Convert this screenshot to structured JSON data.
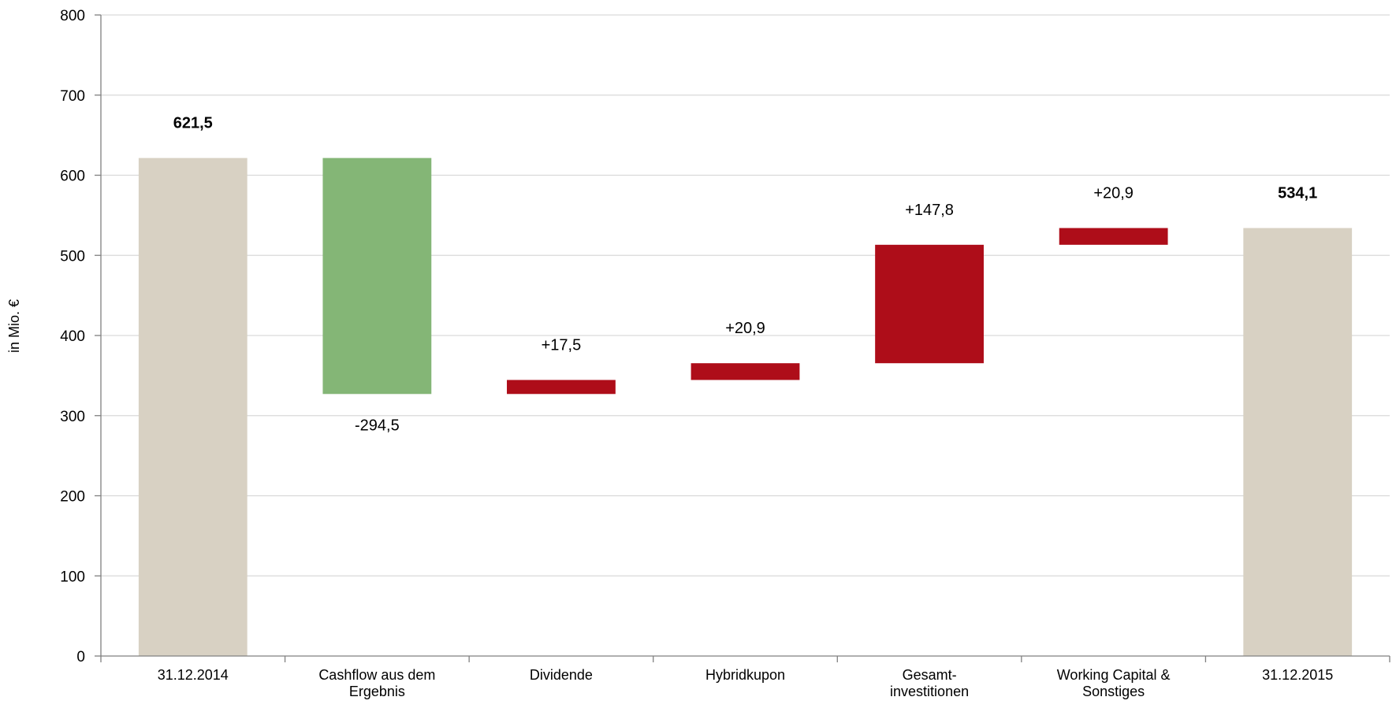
{
  "chart_data": {
    "type": "bar",
    "subtype": "waterfall",
    "ylabel": "in Mio. €",
    "ylim": [
      0,
      800
    ],
    "yticks": [
      0,
      100,
      200,
      300,
      400,
      500,
      600,
      700,
      800
    ],
    "ytick_labels": [
      "0",
      "100",
      "200",
      "300",
      "400",
      "500",
      "600",
      "700",
      "800"
    ],
    "grid": true,
    "legend": "none",
    "colors": {
      "total": "#D8D1C3",
      "increase": "#84B676",
      "decrease": "#AE0D19",
      "grid": "#D9D9D9",
      "axis": "#808080"
    },
    "bars": [
      {
        "category": [
          "31.12.2014"
        ],
        "kind": "total",
        "start": 0,
        "end": 621.5,
        "label": "621,5",
        "label_bold": true,
        "label_position": "above"
      },
      {
        "category": [
          "Cashflow aus dem",
          "Ergebnis"
        ],
        "kind": "increase",
        "start": 621.5,
        "end": 327.0,
        "label": "-294,5",
        "label_bold": false,
        "label_position": "below"
      },
      {
        "category": [
          "Dividende"
        ],
        "kind": "decrease",
        "start": 327.0,
        "end": 344.5,
        "label": "+17,5",
        "label_bold": false,
        "label_position": "above"
      },
      {
        "category": [
          "Hybridkupon"
        ],
        "kind": "decrease",
        "start": 344.5,
        "end": 365.4,
        "label": "+20,9",
        "label_bold": false,
        "label_position": "above"
      },
      {
        "category": [
          "Gesamt-",
          "investitionen"
        ],
        "kind": "decrease",
        "start": 365.4,
        "end": 513.2,
        "label": "+147,8",
        "label_bold": false,
        "label_position": "above"
      },
      {
        "category": [
          "Working Capital &",
          "Sonstiges"
        ],
        "kind": "decrease",
        "start": 513.2,
        "end": 534.1,
        "label": "+20,9",
        "label_bold": false,
        "label_position": "above"
      },
      {
        "category": [
          "31.12.2015"
        ],
        "kind": "total",
        "start": 0,
        "end": 534.1,
        "label": "534,1",
        "label_bold": true,
        "label_position": "above"
      }
    ]
  }
}
